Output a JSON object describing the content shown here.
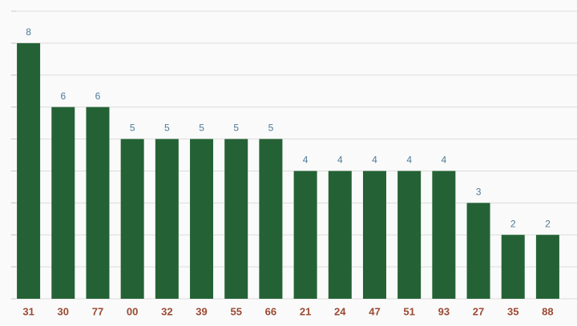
{
  "chart_data": {
    "type": "bar",
    "categories": [
      "31",
      "30",
      "77",
      "00",
      "32",
      "39",
      "55",
      "66",
      "21",
      "24",
      "47",
      "51",
      "93",
      "27",
      "35",
      "88"
    ],
    "values": [
      8,
      6,
      6,
      5,
      5,
      5,
      5,
      5,
      4,
      4,
      4,
      4,
      4,
      3,
      2,
      2
    ],
    "color": "#246235",
    "ylim": [
      0,
      9
    ],
    "yticks": [
      0,
      1,
      2,
      3,
      4,
      5,
      6,
      7,
      8,
      9
    ],
    "grid": true
  }
}
